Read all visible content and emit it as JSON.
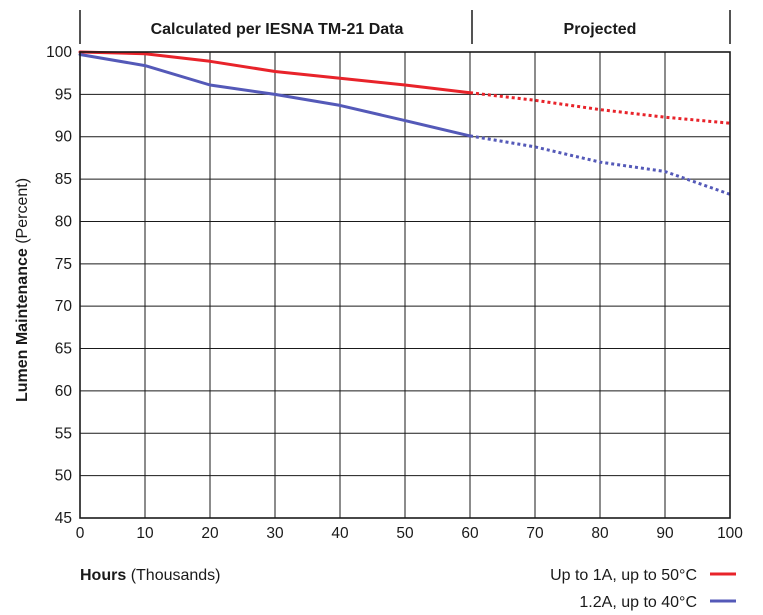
{
  "chart_data": {
    "type": "line",
    "section_labels": [
      "Calculated per IESNA TM-21 Data",
      "Projected"
    ],
    "section_split_x": 60,
    "ylabel_bold": "Lumen Maintenance",
    "ylabel_rest": "(Percent)",
    "xlabel_bold": "Hours",
    "xlabel_rest": "(Thousands)",
    "xlim": [
      0,
      100
    ],
    "ylim": [
      45,
      100
    ],
    "xticks": [
      0,
      10,
      20,
      30,
      40,
      50,
      60,
      70,
      80,
      90,
      100
    ],
    "yticks": [
      45,
      50,
      55,
      60,
      65,
      70,
      75,
      80,
      85,
      90,
      95,
      100
    ],
    "grid": true,
    "legend_position": "bottom-right",
    "series": [
      {
        "name": "Up to 1A, up to  50°C",
        "color": "#e8232a",
        "x": [
          0,
          10,
          20,
          30,
          40,
          50,
          60,
          70,
          80,
          90,
          100
        ],
        "y": [
          100,
          99.8,
          98.9,
          97.7,
          96.9,
          96.1,
          95.2,
          94.3,
          93.2,
          92.3,
          91.6
        ]
      },
      {
        "name": "1.2A, up to  40°C",
        "color": "#5459b8",
        "x": [
          0,
          10,
          20,
          30,
          40,
          50,
          60,
          70,
          80,
          90,
          100
        ],
        "y": [
          99.7,
          98.4,
          96.1,
          95.0,
          93.7,
          91.9,
          90.1,
          88.8,
          87.0,
          85.9,
          83.2
        ]
      }
    ]
  }
}
